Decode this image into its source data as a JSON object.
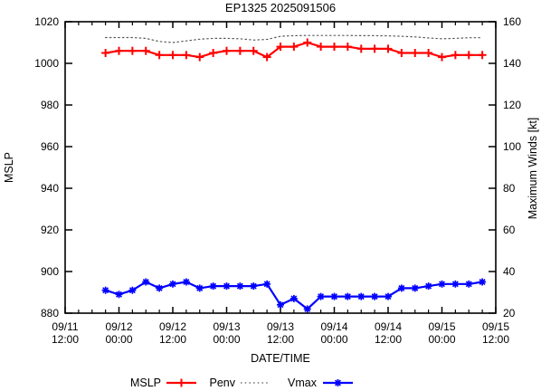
{
  "title": "EP1325 2025091506",
  "chart_data": {
    "type": "line",
    "title": "EP1325 2025091506",
    "xlabel": "DATE/TIME",
    "ylabel_left": "MSLP",
    "ylabel_right": "Maximum Winds [kt]",
    "grid": false,
    "legend_position": "bottom-center",
    "x_range_hours": [
      0,
      96
    ],
    "x_major_step_hours": 12,
    "x_minor_step_hours": 3,
    "y_left_range": [
      880,
      1020
    ],
    "y_right_range": [
      20,
      160
    ],
    "y_left_ticks": [
      1020,
      1000,
      980,
      960,
      940,
      920,
      900,
      880
    ],
    "y_right_ticks": [
      160,
      140,
      120,
      100,
      80,
      60,
      40,
      20
    ],
    "x_ticks": [
      {
        "date": "09/11",
        "time": "12:00"
      },
      {
        "date": "09/12",
        "time": "00:00"
      },
      {
        "date": "09/12",
        "time": "12:00"
      },
      {
        "date": "09/13",
        "time": "00:00"
      },
      {
        "date": "09/13",
        "time": "12:00"
      },
      {
        "date": "09/14",
        "time": "00:00"
      },
      {
        "date": "09/14",
        "time": "12:00"
      },
      {
        "date": "09/15",
        "time": "00:00"
      },
      {
        "date": "09/15",
        "time": "12:00"
      }
    ],
    "x_hours": [
      9,
      12,
      15,
      18,
      21,
      24,
      27,
      30,
      33,
      36,
      39,
      42,
      45,
      48,
      51,
      54,
      57,
      60,
      63,
      66,
      69,
      72,
      75,
      78,
      81,
      84,
      87,
      90,
      93
    ],
    "series": [
      {
        "name": "Penv",
        "axis": "left",
        "color": "#5a5a5a",
        "style": "dotted",
        "marker": "none",
        "values": [
          1012.4,
          1012.4,
          1012.4,
          1012.0,
          1010.5,
          1010.0,
          1010.8,
          1011.6,
          1012.0,
          1012.0,
          1011.8,
          1011.2,
          1011.5,
          1013.0,
          1013.3,
          1013.4,
          1013.4,
          1013.4,
          1013.4,
          1013.3,
          1013.3,
          1013.2,
          1013.0,
          1012.7,
          1012.2,
          1011.8,
          1012.0,
          1012.3,
          1012.3
        ]
      },
      {
        "name": "MSLP",
        "axis": "left",
        "color": "#ff0000",
        "style": "solid",
        "marker": "plus",
        "values": [
          1005,
          1006,
          1006,
          1006,
          1004,
          1004,
          1004,
          1003,
          1005,
          1006,
          1006,
          1006,
          1003,
          1008,
          1008,
          1010,
          1008,
          1008,
          1008,
          1007,
          1007,
          1007,
          1005,
          1005,
          1005,
          1003,
          1004,
          1004,
          1004
        ]
      },
      {
        "name": "Vmax",
        "axis": "right",
        "color": "#0000ff",
        "style": "solid",
        "marker": "asterisk",
        "values": [
          31,
          29,
          31,
          35,
          32,
          34,
          35,
          32,
          33,
          33,
          33,
          33,
          34,
          24,
          27,
          22,
          28,
          28,
          28,
          28,
          28,
          28,
          32,
          32,
          33,
          34,
          34,
          34,
          35
        ]
      }
    ]
  },
  "legend": {
    "items": [
      {
        "label": "MSLP",
        "series": "MSLP"
      },
      {
        "label": "Penv",
        "series": "Penv"
      },
      {
        "label": "Vmax",
        "series": "Vmax"
      }
    ]
  }
}
